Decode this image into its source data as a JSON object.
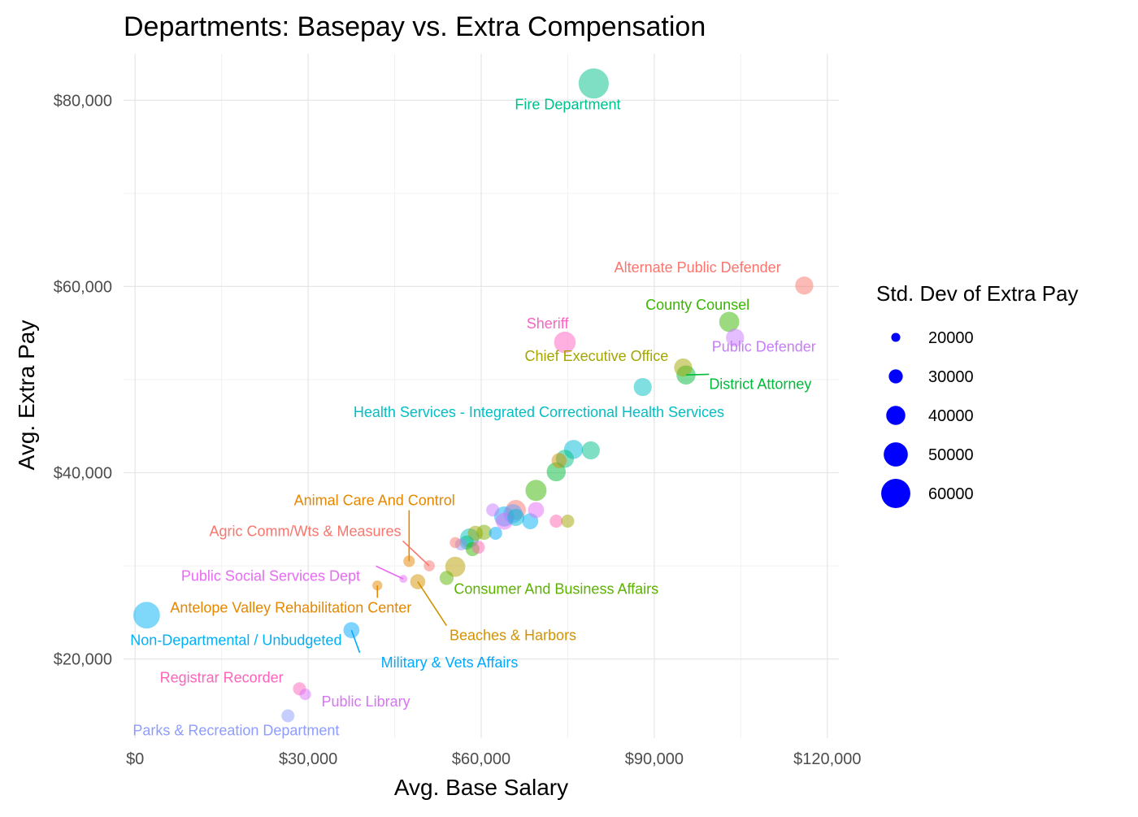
{
  "chart_data": {
    "type": "scatter",
    "title": "Departments: Basepay vs. Extra Compensation",
    "xlabel": "Avg. Base Salary",
    "ylabel": "Avg. Extra Pay",
    "xlim": [
      -2000,
      122000
    ],
    "ylim": [
      11500,
      85000
    ],
    "xticks": [
      0,
      30000,
      60000,
      90000,
      120000
    ],
    "xtick_labels": [
      "$0",
      "$30,000",
      "$60,000",
      "$90,000",
      "$120,000"
    ],
    "yticks": [
      20000,
      40000,
      60000,
      80000
    ],
    "ytick_labels": [
      "$20,000",
      "$40,000",
      "$60,000",
      "$80,000"
    ],
    "grid": true,
    "legend": {
      "title": "Std. Dev of Extra Pay",
      "placement": "right",
      "color": "#0000ff",
      "entries": [
        {
          "label": "20000",
          "value": 20000
        },
        {
          "label": "30000",
          "value": 30000
        },
        {
          "label": "40000",
          "value": 40000
        },
        {
          "label": "50000",
          "value": 50000
        },
        {
          "label": "60000",
          "value": 60000
        }
      ]
    },
    "points": [
      {
        "label": "Fire Department",
        "x": 79500,
        "y": 81800,
        "sd": 62000,
        "color": "#00C08B",
        "label_x": 75000,
        "label_y": 79000,
        "anchor": "middle"
      },
      {
        "label": "Alternate Public Defender",
        "x": 116000,
        "y": 60100,
        "sd": 38000,
        "color": "#F8766D",
        "label_x": 97500,
        "label_y": 61500,
        "anchor": "middle"
      },
      {
        "label": "County Counsel",
        "x": 103000,
        "y": 56200,
        "sd": 42000,
        "color": "#39B600",
        "label_x": 97500,
        "label_y": 57500,
        "anchor": "middle"
      },
      {
        "label": "Public Defender",
        "x": 104000,
        "y": 54500,
        "sd": 38000,
        "color": "#C77CFF",
        "label_x": 109000,
        "label_y": 53000,
        "anchor": "middle"
      },
      {
        "label": "Sheriff",
        "x": 74500,
        "y": 54000,
        "sd": 45000,
        "color": "#FF61C3",
        "label_x": 71500,
        "label_y": 55500,
        "anchor": "middle"
      },
      {
        "label": "Chief Executive Office",
        "x": 95000,
        "y": 51300,
        "sd": 38000,
        "color": "#A3A500",
        "label_x": 80000,
        "label_y": 52000,
        "anchor": "middle"
      },
      {
        "label": "District Attorney",
        "x": 95500,
        "y": 50500,
        "sd": 40000,
        "color": "#00BA38",
        "label_x": 99500,
        "label_y": 49000,
        "anchor": "start"
      },
      {
        "label": "Health Services - Integrated Correctional Health Services",
        "x": 88000,
        "y": 49200,
        "sd": 38000,
        "color": "#00BFC4",
        "label_x": 70000,
        "label_y": 46000,
        "anchor": "middle"
      },
      {
        "label": "Animal Care And Control",
        "x": 47500,
        "y": 30500,
        "sd": 25000,
        "color": "#E58700",
        "label_x": 41500,
        "label_y": 36500,
        "anchor": "middle"
      },
      {
        "label": "Agric Comm/Wts & Measures",
        "x": 51000,
        "y": 30000,
        "sd": 24000,
        "color": "#F8766D",
        "label_x": 29500,
        "label_y": 33200,
        "anchor": "middle"
      },
      {
        "label": "Public Social Services Dept",
        "x": 46500,
        "y": 28600,
        "sd": 18000,
        "color": "#E76BF3",
        "label_x": 23500,
        "label_y": 28400,
        "anchor": "middle"
      },
      {
        "label": "Consumer And Business Affairs",
        "x": 54000,
        "y": 28700,
        "sd": 30000,
        "color": "#5BB300",
        "label_x": 73000,
        "label_y": 27000,
        "anchor": "middle"
      },
      {
        "label": "Antelope Valley Rehabilitation Center",
        "x": 42000,
        "y": 27900,
        "sd": 22000,
        "color": "#E58700",
        "label_x": 27000,
        "label_y": 25000,
        "anchor": "middle"
      },
      {
        "label": "Non-Departmental / Unbudgeted",
        "x": 2000,
        "y": 24700,
        "sd": 55000,
        "color": "#00B0F6",
        "label_x": 17500,
        "label_y": 21500,
        "anchor": "middle"
      },
      {
        "label": "Beaches & Harbors",
        "x": 49000,
        "y": 28300,
        "sd": 32000,
        "color": "#D39200",
        "label_x": 65500,
        "label_y": 22000,
        "anchor": "middle"
      },
      {
        "label": "Military & Vets Affairs",
        "x": 37500,
        "y": 23100,
        "sd": 34000,
        "color": "#00A9FF",
        "label_x": 54500,
        "label_y": 19100,
        "anchor": "middle"
      },
      {
        "label": "Registrar Recorder",
        "x": 28500,
        "y": 16800,
        "sd": 28000,
        "color": "#FF62BC",
        "label_x": 15000,
        "label_y": 17500,
        "anchor": "middle"
      },
      {
        "label": "Public Library",
        "x": 29500,
        "y": 16200,
        "sd": 25000,
        "color": "#DB72FB",
        "label_x": 40000,
        "label_y": 14900,
        "anchor": "middle"
      },
      {
        "label": "Parks & Recreation Department",
        "x": 26500,
        "y": 13900,
        "sd": 28000,
        "color": "#8E9CFF",
        "label_x": 17500,
        "label_y": 11800,
        "anchor": "middle"
      },
      {
        "x": 55500,
        "y": 29900,
        "sd": 42000,
        "color": "#B79F00"
      },
      {
        "x": 56500,
        "y": 32300,
        "sd": 26000,
        "color": "#9590FF"
      },
      {
        "x": 55500,
        "y": 32500,
        "sd": 24000,
        "color": "#F8766D"
      },
      {
        "x": 57500,
        "y": 32500,
        "sd": 30000,
        "color": "#00BF7D"
      },
      {
        "x": 59500,
        "y": 32000,
        "sd": 28000,
        "color": "#FF64B0"
      },
      {
        "x": 58000,
        "y": 33000,
        "sd": 40000,
        "color": "#00BFC4"
      },
      {
        "x": 59000,
        "y": 33500,
        "sd": 32000,
        "color": "#A3A500"
      },
      {
        "x": 60500,
        "y": 33600,
        "sd": 32000,
        "color": "#7CAE00"
      },
      {
        "x": 62500,
        "y": 33500,
        "sd": 28000,
        "color": "#00A9FF"
      },
      {
        "x": 58500,
        "y": 31800,
        "sd": 30000,
        "color": "#39B600"
      },
      {
        "x": 62000,
        "y": 36000,
        "sd": 28000,
        "color": "#C77CFF"
      },
      {
        "x": 64000,
        "y": 34800,
        "sd": 36000,
        "color": "#E76BF3"
      },
      {
        "x": 64000,
        "y": 35300,
        "sd": 42000,
        "color": "#00B0F6"
      },
      {
        "x": 66000,
        "y": 36000,
        "sd": 42000,
        "color": "#F8766D"
      },
      {
        "x": 65500,
        "y": 35600,
        "sd": 40000,
        "color": "#619CFF"
      },
      {
        "x": 66000,
        "y": 35200,
        "sd": 36000,
        "color": "#00BCD8"
      },
      {
        "x": 68500,
        "y": 34800,
        "sd": 34000,
        "color": "#00B0F6"
      },
      {
        "x": 69500,
        "y": 36000,
        "sd": 34000,
        "color": "#E76BF3"
      },
      {
        "x": 69500,
        "y": 38100,
        "sd": 44000,
        "color": "#39B600"
      },
      {
        "x": 73000,
        "y": 34800,
        "sd": 28000,
        "color": "#FF64B0"
      },
      {
        "x": 75000,
        "y": 34800,
        "sd": 28000,
        "color": "#A3A500"
      },
      {
        "x": 73000,
        "y": 40100,
        "sd": 40000,
        "color": "#00BA38"
      },
      {
        "x": 73500,
        "y": 41300,
        "sd": 32000,
        "color": "#D39200"
      },
      {
        "x": 74500,
        "y": 41500,
        "sd": 38000,
        "color": "#00BF7D"
      },
      {
        "x": 76000,
        "y": 42500,
        "sd": 40000,
        "color": "#00BCD8"
      },
      {
        "x": 79000,
        "y": 42400,
        "sd": 38000,
        "color": "#00C08B"
      }
    ]
  }
}
